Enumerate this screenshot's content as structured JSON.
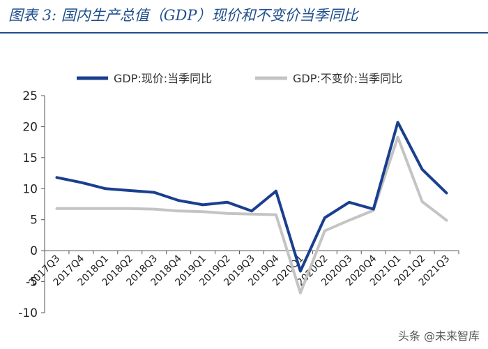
{
  "figure": {
    "title": "图表 3:  国内生产总值（GDP）现价和不变价当季同比",
    "watermark": "头条 @未来智库"
  },
  "colors": {
    "series1": "#1a3f8f",
    "series2": "#c4c4c4",
    "axis": "#555555"
  },
  "chart_data": {
    "type": "line",
    "title": "",
    "xlabel": "",
    "ylabel": "",
    "ylim": [
      -10,
      25
    ],
    "yticks": [
      -10,
      -5,
      0,
      5,
      10,
      15,
      20,
      25
    ],
    "grid": false,
    "legend_position": "top",
    "categories": [
      "2017Q3",
      "2017Q4",
      "2018Q1",
      "2018Q2",
      "2018Q3",
      "2018Q4",
      "2019Q1",
      "2019Q2",
      "2019Q3",
      "2019Q4",
      "2020Q1",
      "2020Q2",
      "2020Q3",
      "2020Q4",
      "2021Q1",
      "2021Q2",
      "2021Q3"
    ],
    "series": [
      {
        "name": "GDP:现价:当季同比",
        "values": [
          11.8,
          11.0,
          10.0,
          9.7,
          9.4,
          8.1,
          7.4,
          7.8,
          6.4,
          9.6,
          -3.3,
          5.3,
          7.8,
          6.7,
          20.7,
          13.1,
          9.3
        ]
      },
      {
        "name": "GDP:不变价:当季同比",
        "values": [
          6.8,
          6.8,
          6.8,
          6.8,
          6.7,
          6.4,
          6.3,
          6.0,
          5.9,
          5.8,
          -6.8,
          3.2,
          4.9,
          6.5,
          18.3,
          7.9,
          4.9
        ]
      }
    ]
  }
}
